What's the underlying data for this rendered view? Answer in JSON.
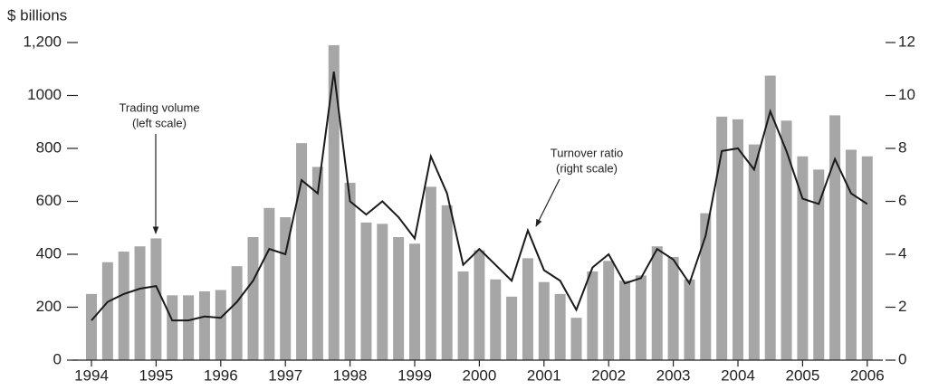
{
  "chart_data": {
    "type": "bar_line",
    "y_label": "$ billions",
    "annotations": [
      [
        "Trading volume",
        "(left scale)"
      ],
      [
        "Turnover ratio",
        "(right scale)"
      ]
    ],
    "categories": [
      "1994",
      null,
      null,
      null,
      "1995",
      null,
      null,
      null,
      "1996",
      null,
      null,
      null,
      "1997",
      null,
      null,
      null,
      "1998",
      null,
      null,
      null,
      "1999",
      null,
      null,
      null,
      "2000",
      null,
      null,
      null,
      "2001",
      null,
      null,
      null,
      "2002",
      null,
      null,
      null,
      "2003",
      null,
      null,
      null,
      "2004",
      null,
      null,
      null,
      "2005",
      null,
      null,
      null,
      "2006"
    ],
    "series": [
      {
        "color": "#a6a6a6",
        "values": [
          250,
          370,
          410,
          430,
          460,
          245,
          245,
          260,
          265,
          355,
          465,
          575,
          540,
          820,
          730,
          1190,
          670,
          520,
          515,
          465,
          440,
          655,
          585,
          335,
          415,
          305,
          240,
          385,
          295,
          250,
          160,
          335,
          375,
          300,
          320,
          430,
          390,
          305,
          555,
          920,
          910,
          815,
          1075,
          905,
          770,
          720,
          925,
          795,
          770
        ]
      },
      {
        "color": "#1a1a1a",
        "axis": "y2",
        "values": [
          1.5,
          2.2,
          2.5,
          2.7,
          2.8,
          1.5,
          1.5,
          1.65,
          1.6,
          2.2,
          3.0,
          4.2,
          4.0,
          6.8,
          6.3,
          10.9,
          6.0,
          5.5,
          6.0,
          5.4,
          4.6,
          7.7,
          6.3,
          3.6,
          4.2,
          3.6,
          3.0,
          4.9,
          3.4,
          3.0,
          1.9,
          3.5,
          4.0,
          2.9,
          3.1,
          4.2,
          3.8,
          2.9,
          4.7,
          7.9,
          8.0,
          7.2,
          9.4,
          7.9,
          6.1,
          5.9,
          7.6,
          6.3,
          5.9
        ]
      }
    ],
    "ylim": [
      0,
      1200
    ],
    "yticks": [
      0,
      200,
      400,
      600,
      800,
      1000,
      {
        "value": 1200,
        "label": "1,200"
      }
    ],
    "y2lim": [
      0,
      12
    ],
    "y2ticks": [
      0,
      2,
      4,
      6,
      8,
      10,
      12
    ]
  }
}
